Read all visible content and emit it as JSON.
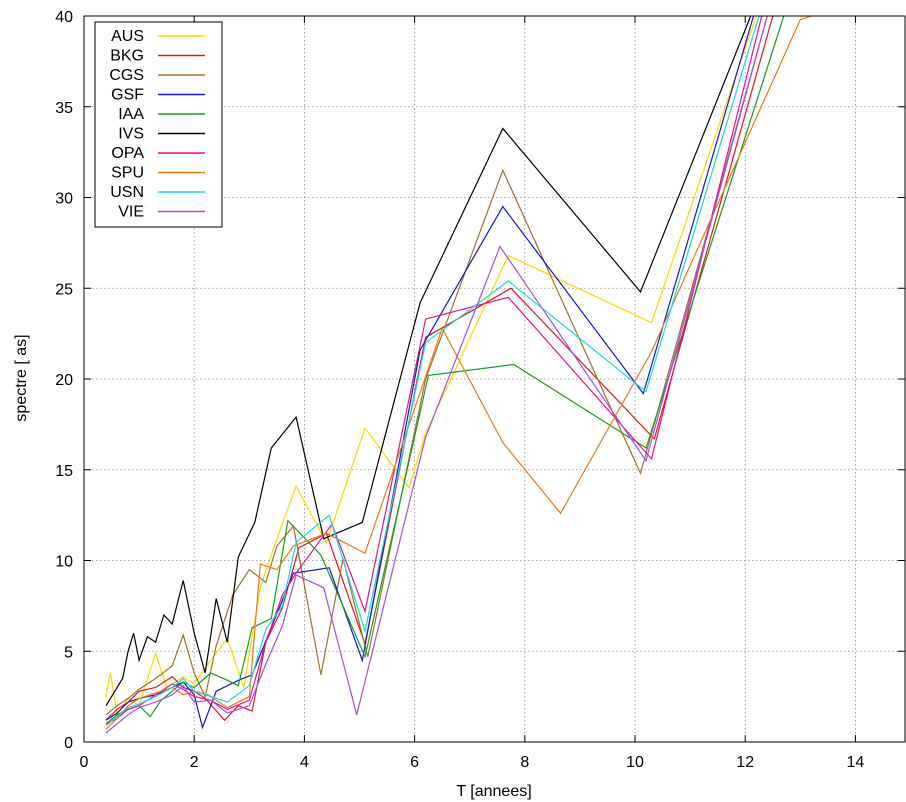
{
  "chart_data": {
    "type": "line",
    "title": "",
    "xlabel": "T [annees]",
    "ylabel": "spectre [  as]",
    "xlim": [
      0,
      14.9
    ],
    "ylim": [
      0,
      40
    ],
    "xticks": [
      0,
      2,
      4,
      6,
      8,
      10,
      12,
      14
    ],
    "yticks": [
      0,
      5,
      10,
      15,
      20,
      25,
      30,
      35,
      40
    ],
    "grid": true,
    "legend_position": "top-left",
    "series": [
      {
        "name": "AUS",
        "color": "#FFD700",
        "points": [
          [
            0.4,
            2.5
          ],
          [
            0.48,
            3.8
          ],
          [
            0.6,
            1.5
          ],
          [
            0.8,
            2.4
          ],
          [
            1.0,
            2.0
          ],
          [
            1.3,
            4.9
          ],
          [
            1.5,
            3.0
          ],
          [
            1.8,
            3.6
          ],
          [
            2.0,
            3.2
          ],
          [
            2.3,
            4.5
          ],
          [
            2.6,
            5.7
          ],
          [
            2.9,
            3.0
          ],
          [
            3.2,
            8.5
          ],
          [
            3.5,
            11.2
          ],
          [
            3.85,
            14.1
          ],
          [
            4.4,
            11.0
          ],
          [
            5.1,
            17.3
          ],
          [
            5.9,
            14.0
          ],
          [
            6.2,
            17.0
          ],
          [
            7.7,
            26.8
          ],
          [
            10.3,
            23.1
          ],
          [
            12.2,
            40.0
          ]
        ]
      },
      {
        "name": "BKG",
        "color": "#E8141C",
        "points": [
          [
            0.4,
            1.2
          ],
          [
            0.6,
            1.8
          ],
          [
            0.8,
            2.2
          ],
          [
            1.0,
            2.8
          ],
          [
            1.3,
            3.0
          ],
          [
            1.6,
            3.6
          ],
          [
            1.8,
            3.0
          ],
          [
            2.0,
            2.8
          ],
          [
            2.2,
            2.4
          ],
          [
            2.55,
            1.2
          ],
          [
            2.8,
            2.0
          ],
          [
            3.05,
            1.7
          ],
          [
            3.3,
            5.5
          ],
          [
            3.6,
            7.4
          ],
          [
            3.9,
            10.7
          ],
          [
            4.4,
            11.5
          ],
          [
            5.1,
            5.4
          ],
          [
            6.2,
            22.3
          ],
          [
            7.75,
            25.0
          ],
          [
            10.35,
            16.7
          ],
          [
            12.5,
            40.0
          ]
        ]
      },
      {
        "name": "CGS",
        "color": "#A0702A",
        "points": [
          [
            0.4,
            1.5
          ],
          [
            0.6,
            2.0
          ],
          [
            0.8,
            2.4
          ],
          [
            1.0,
            2.9
          ],
          [
            1.3,
            3.5
          ],
          [
            1.6,
            4.2
          ],
          [
            1.8,
            5.9
          ],
          [
            2.0,
            3.8
          ],
          [
            2.2,
            2.5
          ],
          [
            2.4,
            5.3
          ],
          [
            2.7,
            8.1
          ],
          [
            3.0,
            9.5
          ],
          [
            3.3,
            8.8
          ],
          [
            3.5,
            10.8
          ],
          [
            3.8,
            11.9
          ],
          [
            4.3,
            3.7
          ],
          [
            4.7,
            10.1
          ],
          [
            5.15,
            4.7
          ],
          [
            6.2,
            20.0
          ],
          [
            7.6,
            31.5
          ],
          [
            10.1,
            14.8
          ],
          [
            12.4,
            40.0
          ]
        ]
      },
      {
        "name": "GSF",
        "color": "#1414C8",
        "points": [
          [
            0.4,
            1.2
          ],
          [
            0.6,
            1.6
          ],
          [
            0.8,
            2.2
          ],
          [
            1.0,
            2.4
          ],
          [
            1.3,
            2.6
          ],
          [
            1.6,
            3.0
          ],
          [
            1.8,
            3.3
          ],
          [
            2.0,
            2.6
          ],
          [
            2.15,
            0.8
          ],
          [
            2.4,
            2.8
          ],
          [
            2.8,
            3.4
          ],
          [
            3.05,
            3.7
          ],
          [
            3.8,
            9.3
          ],
          [
            4.45,
            9.6
          ],
          [
            5.05,
            4.5
          ],
          [
            6.1,
            21.6
          ],
          [
            7.6,
            29.5
          ],
          [
            10.15,
            19.2
          ],
          [
            12.15,
            40.0
          ]
        ]
      },
      {
        "name": "IAA",
        "color": "#14A014",
        "points": [
          [
            0.4,
            1.0
          ],
          [
            0.6,
            1.5
          ],
          [
            0.8,
            1.8
          ],
          [
            1.0,
            2.0
          ],
          [
            1.2,
            1.4
          ],
          [
            1.4,
            2.3
          ],
          [
            1.6,
            2.8
          ],
          [
            1.8,
            3.3
          ],
          [
            2.0,
            3.0
          ],
          [
            2.3,
            3.8
          ],
          [
            2.6,
            3.4
          ],
          [
            2.8,
            3.1
          ],
          [
            3.05,
            6.3
          ],
          [
            3.4,
            6.8
          ],
          [
            3.7,
            12.2
          ],
          [
            4.3,
            10.3
          ],
          [
            5.1,
            4.7
          ],
          [
            6.25,
            20.2
          ],
          [
            7.8,
            20.8
          ],
          [
            10.2,
            16.2
          ],
          [
            12.7,
            40.0
          ]
        ]
      },
      {
        "name": "IVS",
        "color": "#000000",
        "points": [
          [
            0.4,
            2.0
          ],
          [
            0.5,
            2.5
          ],
          [
            0.6,
            3.0
          ],
          [
            0.7,
            3.5
          ],
          [
            0.8,
            5.0
          ],
          [
            0.9,
            6.0
          ],
          [
            1.0,
            4.5
          ],
          [
            1.15,
            5.8
          ],
          [
            1.3,
            5.5
          ],
          [
            1.45,
            7.0
          ],
          [
            1.6,
            6.5
          ],
          [
            1.8,
            8.9
          ],
          [
            2.0,
            6.0
          ],
          [
            2.2,
            3.8
          ],
          [
            2.4,
            7.9
          ],
          [
            2.6,
            5.5
          ],
          [
            2.8,
            10.2
          ],
          [
            3.1,
            12.1
          ],
          [
            3.4,
            16.2
          ],
          [
            3.85,
            17.9
          ],
          [
            4.35,
            11.2
          ],
          [
            5.05,
            12.1
          ],
          [
            6.1,
            24.2
          ],
          [
            7.6,
            33.8
          ],
          [
            10.1,
            24.8
          ],
          [
            12.1,
            40.0
          ]
        ]
      },
      {
        "name": "OPA",
        "color": "#E0148C",
        "points": [
          [
            0.4,
            1.0
          ],
          [
            0.6,
            1.3
          ],
          [
            0.8,
            1.8
          ],
          [
            1.0,
            2.0
          ],
          [
            1.3,
            2.6
          ],
          [
            1.6,
            3.2
          ],
          [
            1.8,
            2.9
          ],
          [
            2.0,
            2.5
          ],
          [
            2.3,
            2.3
          ],
          [
            2.6,
            1.8
          ],
          [
            3.0,
            2.3
          ],
          [
            3.3,
            5.5
          ],
          [
            3.6,
            8.1
          ],
          [
            3.85,
            9.3
          ],
          [
            4.5,
            12.0
          ],
          [
            5.1,
            7.2
          ],
          [
            6.2,
            23.3
          ],
          [
            7.7,
            24.5
          ],
          [
            10.3,
            15.6
          ],
          [
            12.3,
            40.0
          ]
        ]
      },
      {
        "name": "SPU",
        "color": "#F07814",
        "points": [
          [
            0.4,
            0.7
          ],
          [
            0.6,
            1.3
          ],
          [
            0.8,
            2.0
          ],
          [
            1.0,
            2.4
          ],
          [
            1.3,
            2.7
          ],
          [
            1.6,
            3.0
          ],
          [
            1.8,
            2.6
          ],
          [
            2.0,
            2.8
          ],
          [
            2.25,
            2.6
          ],
          [
            2.6,
            1.9
          ],
          [
            3.0,
            2.5
          ],
          [
            3.2,
            9.8
          ],
          [
            3.5,
            9.5
          ],
          [
            3.8,
            10.8
          ],
          [
            4.4,
            11.5
          ],
          [
            5.1,
            10.4
          ],
          [
            6.5,
            22.8
          ],
          [
            7.6,
            16.5
          ],
          [
            8.65,
            12.6
          ],
          [
            10.3,
            21.5
          ],
          [
            13.0,
            39.8
          ],
          [
            13.2,
            40.0
          ]
        ]
      },
      {
        "name": "USN",
        "color": "#14DCDC",
        "points": [
          [
            0.4,
            0.9
          ],
          [
            0.6,
            1.4
          ],
          [
            0.8,
            1.9
          ],
          [
            1.0,
            2.1
          ],
          [
            1.3,
            2.5
          ],
          [
            1.6,
            3.0
          ],
          [
            1.8,
            3.5
          ],
          [
            2.0,
            2.8
          ],
          [
            2.3,
            2.5
          ],
          [
            2.6,
            2.2
          ],
          [
            3.0,
            3.1
          ],
          [
            3.3,
            6.2
          ],
          [
            3.6,
            7.5
          ],
          [
            3.85,
            11.0
          ],
          [
            4.45,
            12.5
          ],
          [
            5.1,
            6.1
          ],
          [
            6.2,
            22.0
          ],
          [
            7.7,
            25.4
          ],
          [
            10.2,
            19.3
          ],
          [
            12.25,
            40.0
          ]
        ]
      },
      {
        "name": "VIE",
        "color": "#A050E6",
        "points": [
          [
            0.4,
            0.5
          ],
          [
            0.6,
            1.0
          ],
          [
            0.8,
            1.5
          ],
          [
            1.0,
            1.9
          ],
          [
            1.3,
            2.2
          ],
          [
            1.6,
            2.6
          ],
          [
            1.8,
            3.1
          ],
          [
            2.0,
            2.2
          ],
          [
            2.3,
            2.3
          ],
          [
            2.6,
            1.6
          ],
          [
            3.0,
            2.0
          ],
          [
            3.3,
            4.3
          ],
          [
            3.6,
            6.4
          ],
          [
            3.85,
            9.2
          ],
          [
            4.35,
            8.5
          ],
          [
            4.95,
            1.5
          ],
          [
            6.2,
            16.8
          ],
          [
            7.55,
            27.3
          ],
          [
            10.2,
            15.5
          ],
          [
            12.4,
            40.0
          ]
        ]
      }
    ]
  }
}
